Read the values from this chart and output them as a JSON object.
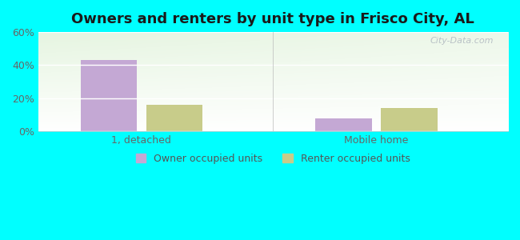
{
  "title": "Owners and renters by unit type in Frisco City, AL",
  "categories": [
    "1, detached",
    "Mobile home"
  ],
  "owner_values": [
    43,
    8
  ],
  "renter_values": [
    16,
    14
  ],
  "owner_color": "#c4a8d4",
  "renter_color": "#c8cc8a",
  "ylim": [
    0,
    60
  ],
  "yticks": [
    0,
    20,
    40,
    60
  ],
  "ytick_labels": [
    "0%",
    "20%",
    "40%",
    "60%"
  ],
  "background_color": "#00ffff",
  "watermark": "City-Data.com",
  "legend_owner": "Owner occupied units",
  "legend_renter": "Renter occupied units",
  "title_fontsize": 13,
  "bar_width": 0.12,
  "group_positions": [
    0.22,
    0.72
  ],
  "xlim": [
    0.0,
    1.0
  ]
}
